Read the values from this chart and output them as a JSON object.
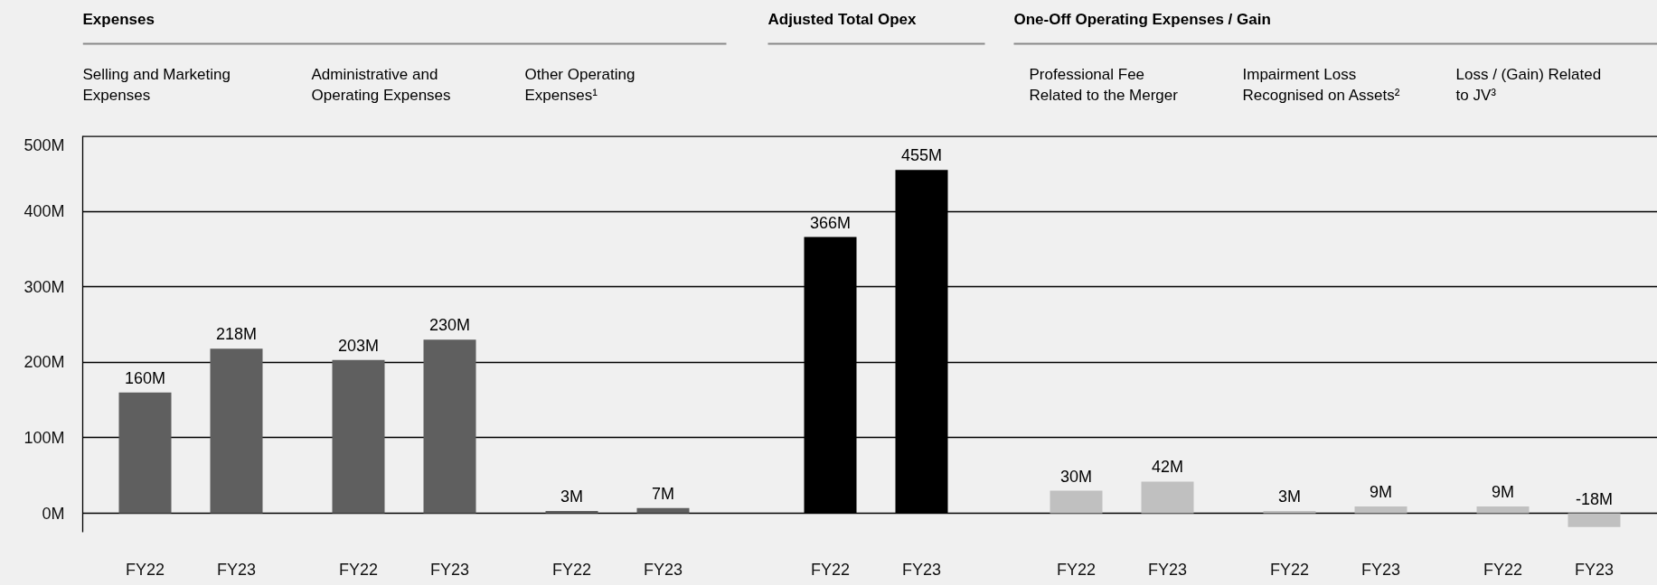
{
  "chart_data": {
    "type": "bar",
    "categories": [
      "FY22",
      "FY23",
      "FY22",
      "FY23",
      "FY22",
      "FY23",
      "FY22",
      "FY23",
      "FY22",
      "FY23",
      "FY22",
      "FY23",
      "FY22",
      "FY23"
    ],
    "values": [
      160,
      218,
      203,
      230,
      3,
      7,
      366,
      455,
      30,
      42,
      3,
      9,
      9,
      -18
    ],
    "value_labels": [
      "160M",
      "218M",
      "203M",
      "230M",
      "3M",
      "7M",
      "366M",
      "455M",
      "30M",
      "42M",
      "3M",
      "9M",
      "9M",
      "-18M"
    ],
    "colors": [
      "#5f5f5f",
      "#5f5f5f",
      "#5f5f5f",
      "#5f5f5f",
      "#5f5f5f",
      "#5f5f5f",
      "#000000",
      "#000000",
      "#c0c0c0",
      "#c0c0c0",
      "#c0c0c0",
      "#c0c0c0",
      "#c0c0c0",
      "#c0c0c0"
    ],
    "ylim": [
      -25,
      500
    ],
    "yticks": [
      {
        "value": 0,
        "label": "0M"
      },
      {
        "value": 100,
        "label": "100M"
      },
      {
        "value": 200,
        "label": "200M"
      },
      {
        "value": 300,
        "label": "300M"
      },
      {
        "value": 400,
        "label": "400M"
      },
      {
        "value": 500,
        "label": "500M"
      }
    ],
    "grid": "y",
    "annotations": [
      "Expenses",
      "Selling and Marketing\nExpenses",
      "Administrative and\nOperating Expenses",
      "Other Operating\nExpenses¹",
      "Adjusted Total Opex",
      "One-Off Operating Expenses / Gain",
      "Professional Fee\nRelated to the Merger",
      "Impairment Loss\nRecognised on Assets²",
      "Loss / (Gain) Related\nto JV³"
    ]
  }
}
